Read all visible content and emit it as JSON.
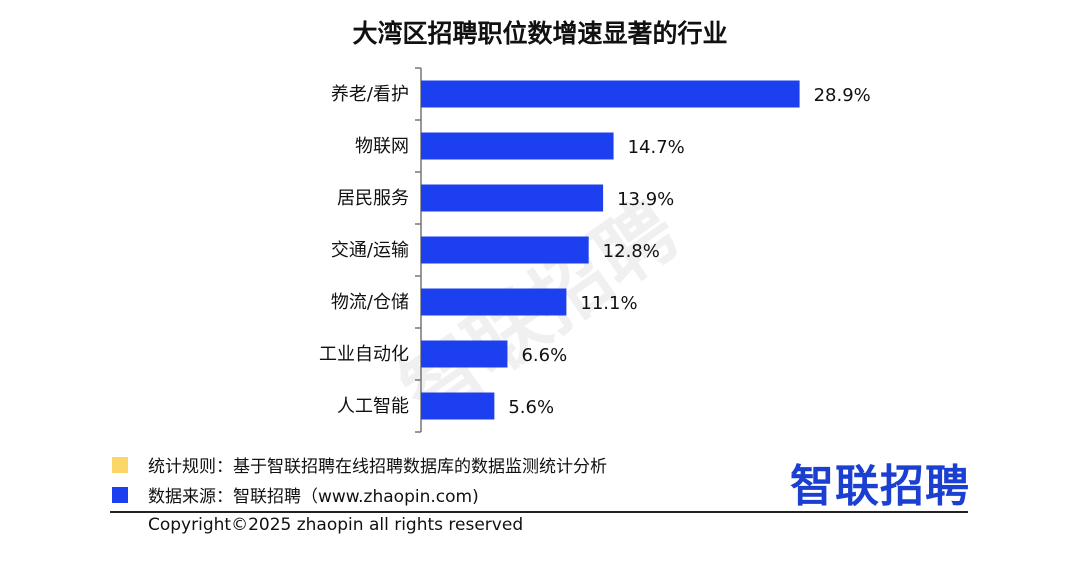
{
  "chart_data": {
    "type": "bar",
    "orientation": "horizontal",
    "title": "大湾区招聘职位数增速显著的行业",
    "categories": [
      "养老/看护",
      "物联网",
      "居民服务",
      "交通/运输",
      "物流/仓储",
      "工业自动化",
      "人工智能"
    ],
    "values": [
      28.9,
      14.7,
      13.9,
      12.8,
      11.1,
      6.6,
      5.6
    ],
    "labels": [
      "28.9%",
      "14.7%",
      "13.9%",
      "12.8%",
      "11.1%",
      "6.6%",
      "5.6%"
    ],
    "unit": "%",
    "bar_color": "#1c3ff0",
    "grid": false
  },
  "watermark": "智联招聘",
  "legend": [
    {
      "text": "统计规则：基于智联招聘在线招聘数据库的数据监测统计分析",
      "color": "#fdd668"
    },
    {
      "text": "数据来源：智联招聘（www.zhaopin.com)",
      "color": "#1c3ff0"
    }
  ],
  "copyright": "Copyright©2025 zhaopin all rights reserved",
  "logo": "智联招聘"
}
